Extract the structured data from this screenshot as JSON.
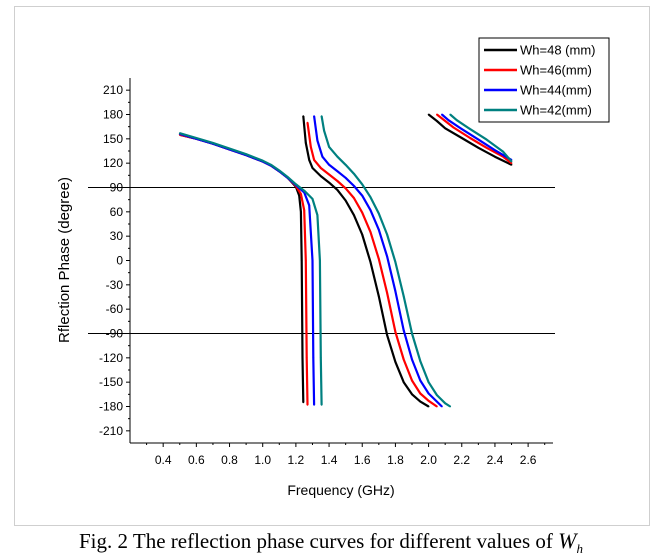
{
  "chart_data": {
    "type": "line",
    "title": "",
    "xlabel": "Frequency (GHz)",
    "ylabel": "Rflection Phase (degree)",
    "xlim": [
      0.2,
      2.75
    ],
    "ylim": [
      -225,
      225
    ],
    "xticks": [
      0.4,
      0.6,
      0.8,
      1.0,
      1.2,
      1.4,
      1.6,
      1.8,
      2.0,
      2.2,
      2.4,
      2.6
    ],
    "xtick_labels": [
      "0.4",
      "0.6",
      "0.8",
      "1.0",
      "1.2",
      "1.4",
      "1.6",
      "1.8",
      "2.0",
      "2.2",
      "2.4",
      "2.6"
    ],
    "yticks": [
      210,
      180,
      150,
      120,
      90,
      60,
      30,
      0,
      -30,
      -60,
      -90,
      -120,
      -150,
      -180,
      -210
    ],
    "ytick_labels": [
      "210",
      "180",
      "150",
      "120",
      "90",
      "60",
      "30",
      "0",
      "-30",
      "-60",
      "-90",
      "-120",
      "-150",
      "-180",
      "-210"
    ],
    "reference_lines": [
      90,
      -90
    ],
    "grid": false,
    "legend_position": "top-right",
    "series": [
      {
        "name": "Wh=48 (mm)",
        "color": "#000000",
        "segments": [
          [
            [
              0.5,
              155
            ],
            [
              0.6,
              150
            ],
            [
              0.7,
              144
            ],
            [
              0.8,
              137
            ],
            [
              0.9,
              130
            ],
            [
              1.0,
              122
            ],
            [
              1.05,
              117
            ],
            [
              1.1,
              110
            ],
            [
              1.15,
              102
            ],
            [
              1.2,
              91
            ],
            [
              1.22,
              80
            ],
            [
              1.23,
              60
            ],
            [
              1.235,
              0
            ],
            [
              1.24,
              -120
            ],
            [
              1.245,
              -175
            ]
          ],
          [
            [
              1.245,
              178
            ],
            [
              1.26,
              145
            ],
            [
              1.28,
              124
            ],
            [
              1.3,
              114
            ],
            [
              1.35,
              104
            ],
            [
              1.4,
              96
            ],
            [
              1.45,
              87
            ],
            [
              1.5,
              74
            ],
            [
              1.55,
              56
            ],
            [
              1.6,
              32
            ],
            [
              1.65,
              -2
            ],
            [
              1.7,
              -44
            ],
            [
              1.75,
              -92
            ],
            [
              1.8,
              -125
            ],
            [
              1.85,
              -150
            ],
            [
              1.9,
              -165
            ],
            [
              1.95,
              -174
            ],
            [
              2.0,
              -180
            ]
          ],
          [
            [
              2.0,
              180
            ],
            [
              2.05,
              172
            ],
            [
              2.1,
              163
            ],
            [
              2.2,
              151
            ],
            [
              2.3,
              139
            ],
            [
              2.4,
              128
            ],
            [
              2.5,
              118
            ]
          ]
        ]
      },
      {
        "name": "Wh=46(mm)",
        "color": "#ff0000",
        "segments": [
          [
            [
              0.5,
              155
            ],
            [
              0.6,
              150
            ],
            [
              0.7,
              144
            ],
            [
              0.8,
              137
            ],
            [
              0.9,
              130
            ],
            [
              1.0,
              122
            ],
            [
              1.05,
              117
            ],
            [
              1.1,
              110
            ],
            [
              1.15,
              102
            ],
            [
              1.2,
              92
            ],
            [
              1.23,
              82
            ],
            [
              1.25,
              62
            ],
            [
              1.26,
              0
            ],
            [
              1.265,
              -120
            ],
            [
              1.27,
              -178
            ]
          ],
          [
            [
              1.27,
              170
            ],
            [
              1.29,
              140
            ],
            [
              1.31,
              124
            ],
            [
              1.35,
              114
            ],
            [
              1.4,
              106
            ],
            [
              1.45,
              98
            ],
            [
              1.5,
              89
            ],
            [
              1.55,
              77
            ],
            [
              1.6,
              59
            ],
            [
              1.65,
              35
            ],
            [
              1.7,
              2
            ],
            [
              1.75,
              -40
            ],
            [
              1.8,
              -88
            ],
            [
              1.85,
              -122
            ],
            [
              1.9,
              -148
            ],
            [
              1.95,
              -164
            ],
            [
              2.0,
              -173
            ],
            [
              2.05,
              -180
            ]
          ],
          [
            [
              2.05,
              180
            ],
            [
              2.1,
              172
            ],
            [
              2.15,
              164
            ],
            [
              2.25,
              151
            ],
            [
              2.35,
              139
            ],
            [
              2.45,
              128
            ],
            [
              2.5,
              120
            ]
          ]
        ]
      },
      {
        "name": "Wh=44(mm)",
        "color": "#0000ff",
        "segments": [
          [
            [
              0.5,
              156
            ],
            [
              0.6,
              150
            ],
            [
              0.7,
              144
            ],
            [
              0.8,
              137
            ],
            [
              0.9,
              130
            ],
            [
              1.0,
              122
            ],
            [
              1.05,
              117
            ],
            [
              1.1,
              110
            ],
            [
              1.15,
              102
            ],
            [
              1.2,
              93
            ],
            [
              1.25,
              84
            ],
            [
              1.28,
              68
            ],
            [
              1.3,
              0
            ],
            [
              1.305,
              -120
            ],
            [
              1.31,
              -178
            ]
          ],
          [
            [
              1.31,
              178
            ],
            [
              1.33,
              148
            ],
            [
              1.36,
              128
            ],
            [
              1.4,
              118
            ],
            [
              1.45,
              110
            ],
            [
              1.5,
              102
            ],
            [
              1.55,
              92
            ],
            [
              1.6,
              80
            ],
            [
              1.65,
              62
            ],
            [
              1.7,
              38
            ],
            [
              1.75,
              5
            ],
            [
              1.8,
              -38
            ],
            [
              1.85,
              -86
            ],
            [
              1.9,
              -122
            ],
            [
              1.95,
              -148
            ],
            [
              2.0,
              -164
            ],
            [
              2.05,
              -174
            ],
            [
              2.08,
              -180
            ]
          ],
          [
            [
              2.08,
              180
            ],
            [
              2.12,
              173
            ],
            [
              2.2,
              162
            ],
            [
              2.3,
              149
            ],
            [
              2.4,
              136
            ],
            [
              2.5,
              124
            ]
          ]
        ]
      },
      {
        "name": "Wh=42(mm)",
        "color": "#008080",
        "segments": [
          [
            [
              0.5,
              157
            ],
            [
              0.6,
              151
            ],
            [
              0.7,
              145
            ],
            [
              0.8,
              138
            ],
            [
              0.9,
              131
            ],
            [
              1.0,
              123
            ],
            [
              1.05,
              118
            ],
            [
              1.1,
              111
            ],
            [
              1.15,
              103
            ],
            [
              1.2,
              94
            ],
            [
              1.25,
              86
            ],
            [
              1.3,
              76
            ],
            [
              1.33,
              56
            ],
            [
              1.345,
              0
            ],
            [
              1.35,
              -120
            ],
            [
              1.355,
              -178
            ]
          ],
          [
            [
              1.355,
              178
            ],
            [
              1.37,
              160
            ],
            [
              1.4,
              140
            ],
            [
              1.45,
              128
            ],
            [
              1.5,
              118
            ],
            [
              1.55,
              107
            ],
            [
              1.6,
              94
            ],
            [
              1.65,
              78
            ],
            [
              1.7,
              58
            ],
            [
              1.75,
              32
            ],
            [
              1.8,
              -2
            ],
            [
              1.85,
              -44
            ],
            [
              1.9,
              -90
            ],
            [
              1.95,
              -124
            ],
            [
              2.0,
              -150
            ],
            [
              2.05,
              -166
            ],
            [
              2.1,
              -176
            ],
            [
              2.13,
              -180
            ]
          ],
          [
            [
              2.13,
              180
            ],
            [
              2.17,
              173
            ],
            [
              2.25,
              162
            ],
            [
              2.35,
              149
            ],
            [
              2.45,
              134
            ],
            [
              2.5,
              122
            ]
          ]
        ]
      }
    ]
  },
  "caption": {
    "prefix": "Fig. 2 The reflection phase curves for different values of",
    "symbol": "W",
    "subscript": "h"
  }
}
